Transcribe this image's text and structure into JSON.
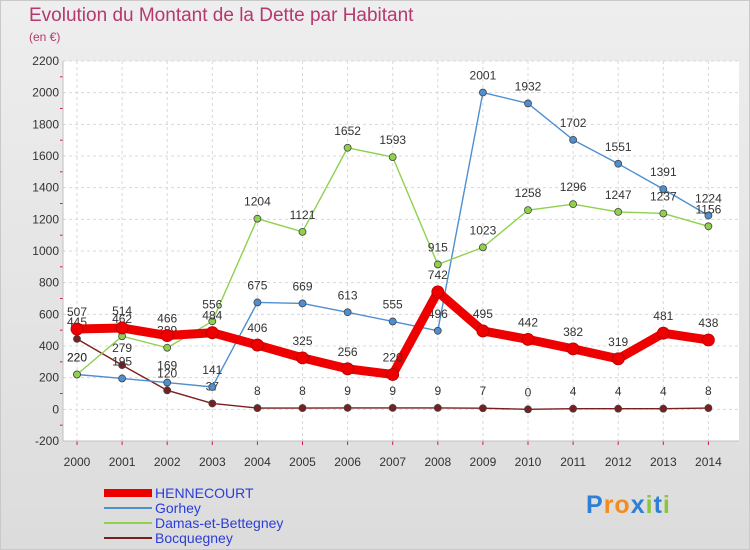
{
  "title": "Evolution du Montant de la Dette par Habitant",
  "subtitle": "(en €)",
  "brand": {
    "letters": [
      "P",
      "r",
      "o",
      "x",
      "i",
      "t",
      "i"
    ],
    "colors": [
      "#2f7fd6",
      "#f28c1e",
      "#f28c1e",
      "#2f7fd6",
      "#8bc53f",
      "#2f7fd6",
      "#8bc53f"
    ]
  },
  "chart_data": {
    "type": "line",
    "title": "Evolution du Montant de la Dette par Habitant",
    "subtitle": "(en €)",
    "x": [
      2000,
      2001,
      2002,
      2003,
      2004,
      2005,
      2006,
      2007,
      2008,
      2009,
      2010,
      2011,
      2012,
      2013,
      2014
    ],
    "ylim": [
      -200,
      2200
    ],
    "yticks": [
      -200,
      0,
      200,
      400,
      600,
      800,
      1000,
      1200,
      1400,
      1600,
      1800,
      2000,
      2200
    ],
    "grid": true,
    "legend_position": "bottom-left",
    "series": [
      {
        "name": "Bocquegney",
        "color": "#7a1f1f",
        "values": [
          445,
          279,
          120,
          37,
          8,
          8,
          9,
          9,
          9,
          7,
          0,
          4,
          4,
          4,
          8
        ]
      },
      {
        "name": "Gorhey",
        "color": "#4f8fd0",
        "values": [
          220,
          195,
          169,
          141,
          675,
          669,
          613,
          555,
          496,
          2001,
          1932,
          1702,
          1551,
          1391,
          1224
        ]
      },
      {
        "name": "Damas-et-Bettegney",
        "color": "#8fd14f",
        "values": [
          220,
          462,
          389,
          556,
          1204,
          1121,
          1652,
          1593,
          915,
          1023,
          1258,
          1296,
          1247,
          1237,
          1156
        ]
      },
      {
        "name": "HENNECOURT",
        "color": "#ee0000",
        "values": [
          507,
          514,
          466,
          484,
          406,
          325,
          256,
          220,
          742,
          495,
          442,
          382,
          319,
          481,
          438
        ]
      }
    ],
    "legend": [
      "HENNECOURT",
      "Gorhey",
      "Damas-et-Bettegney",
      "Bocquegney"
    ]
  }
}
